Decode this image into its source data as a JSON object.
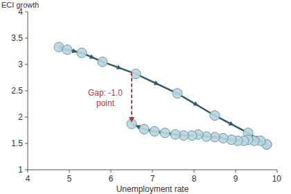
{
  "chart_data": {
    "type": "line",
    "x_label": "Unemployment rate",
    "y_label": "ECI growth",
    "xlim": [
      4,
      10
    ],
    "ylim": [
      1,
      4
    ],
    "xticks": [
      4,
      5,
      6,
      7,
      8,
      9,
      10
    ],
    "yticks": [
      1,
      1.5,
      2,
      2.5,
      3,
      3.5,
      4
    ],
    "grid": false,
    "series": [
      {
        "color": "#2b5b6c",
        "marker": "circle",
        "x": [
          4.75,
          4.95,
          5.3,
          5.8,
          6.6,
          7.6,
          8.5,
          9.3,
          9.75
        ],
        "values": [
          3.33,
          3.28,
          3.22,
          3.05,
          2.82,
          2.45,
          2.03,
          1.7,
          1.48
        ]
      },
      {
        "color": "#2b5b6c",
        "marker": "circle",
        "x": [
          9.75,
          9.6,
          9.45,
          9.3,
          9.2,
          9.05,
          8.9,
          8.7,
          8.5,
          8.3,
          8.1,
          7.95,
          7.75,
          7.55,
          7.3,
          7.05,
          6.8,
          6.5
        ],
        "values": [
          1.48,
          1.55,
          1.55,
          1.57,
          1.55,
          1.55,
          1.57,
          1.6,
          1.62,
          1.63,
          1.67,
          1.65,
          1.65,
          1.67,
          1.7,
          1.73,
          1.77,
          1.87
        ]
      }
    ],
    "annotations": [
      {
        "lines": [
          "Gap: -1.0",
          "point"
        ],
        "color": "#b03a3a",
        "line_style": "dashed",
        "x": 6.5,
        "y_from": 2.85,
        "y_to": 1.87
      }
    ]
  }
}
